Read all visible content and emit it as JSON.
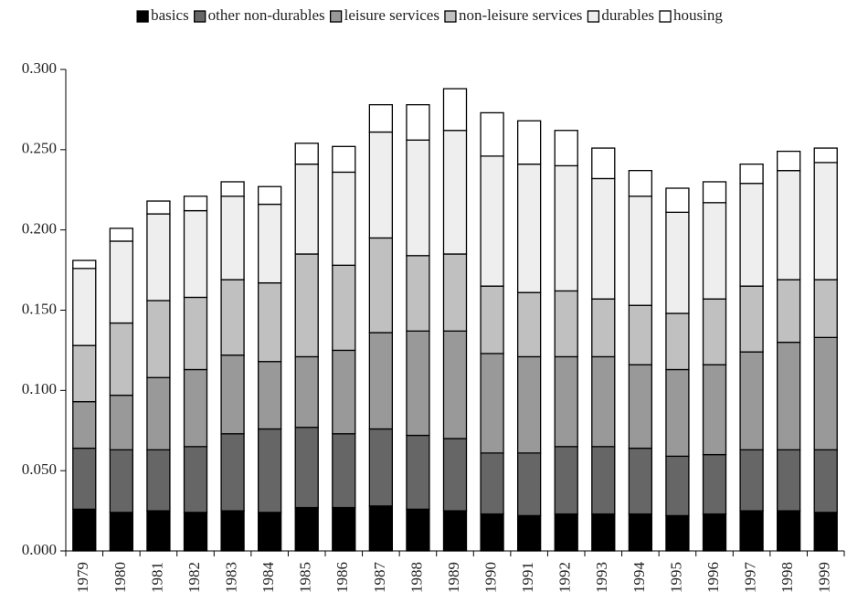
{
  "chart_data": {
    "type": "bar",
    "stacked": true,
    "categories": [
      "1979",
      "1980",
      "1981",
      "1982",
      "1983",
      "1984",
      "1985",
      "1986",
      "1987",
      "1988",
      "1989",
      "1990",
      "1991",
      "1992",
      "1993",
      "1994",
      "1995",
      "1996",
      "1997",
      "1998",
      "1999"
    ],
    "series": [
      {
        "name": "basics",
        "color": "#000000",
        "values": [
          0.026,
          0.024,
          0.025,
          0.024,
          0.025,
          0.024,
          0.027,
          0.027,
          0.028,
          0.026,
          0.025,
          0.023,
          0.022,
          0.023,
          0.023,
          0.023,
          0.022,
          0.023,
          0.025,
          0.025,
          0.024
        ]
      },
      {
        "name": "other non-durables",
        "color": "#666666",
        "values": [
          0.038,
          0.039,
          0.038,
          0.041,
          0.048,
          0.052,
          0.05,
          0.046,
          0.048,
          0.046,
          0.045,
          0.038,
          0.039,
          0.042,
          0.042,
          0.041,
          0.037,
          0.037,
          0.038,
          0.038,
          0.039
        ]
      },
      {
        "name": "leisure services",
        "color": "#999999",
        "values": [
          0.029,
          0.034,
          0.045,
          0.048,
          0.049,
          0.042,
          0.044,
          0.052,
          0.06,
          0.065,
          0.067,
          0.062,
          0.06,
          0.056,
          0.056,
          0.052,
          0.054,
          0.056,
          0.061,
          0.067,
          0.07
        ]
      },
      {
        "name": "non-leisure services",
        "color": "#c0c0c0",
        "values": [
          0.035,
          0.045,
          0.048,
          0.045,
          0.047,
          0.049,
          0.064,
          0.053,
          0.059,
          0.047,
          0.048,
          0.042,
          0.04,
          0.041,
          0.036,
          0.037,
          0.035,
          0.041,
          0.041,
          0.039,
          0.036
        ]
      },
      {
        "name": "durables",
        "color": "#eeeeee",
        "values": [
          0.048,
          0.051,
          0.054,
          0.054,
          0.052,
          0.049,
          0.056,
          0.058,
          0.066,
          0.072,
          0.077,
          0.081,
          0.08,
          0.078,
          0.075,
          0.068,
          0.063,
          0.06,
          0.064,
          0.068,
          0.073
        ]
      },
      {
        "name": "housing",
        "color": "#ffffff",
        "values": [
          0.005,
          0.008,
          0.008,
          0.009,
          0.009,
          0.011,
          0.013,
          0.016,
          0.017,
          0.022,
          0.026,
          0.027,
          0.027,
          0.022,
          0.019,
          0.016,
          0.015,
          0.013,
          0.012,
          0.012,
          0.009
        ]
      }
    ],
    "ylim": [
      0,
      0.3
    ],
    "yticks": [
      {
        "value": 0,
        "label": "0.000"
      },
      {
        "value": 0.05,
        "label": "0.050"
      },
      {
        "value": 0.1,
        "label": "0.100"
      },
      {
        "value": 0.15,
        "label": "0.150"
      },
      {
        "value": 0.2,
        "label": "0.200"
      },
      {
        "value": 0.25,
        "label": "0.250"
      },
      {
        "value": 0.3,
        "label": "0.300"
      }
    ],
    "legend": "top"
  }
}
